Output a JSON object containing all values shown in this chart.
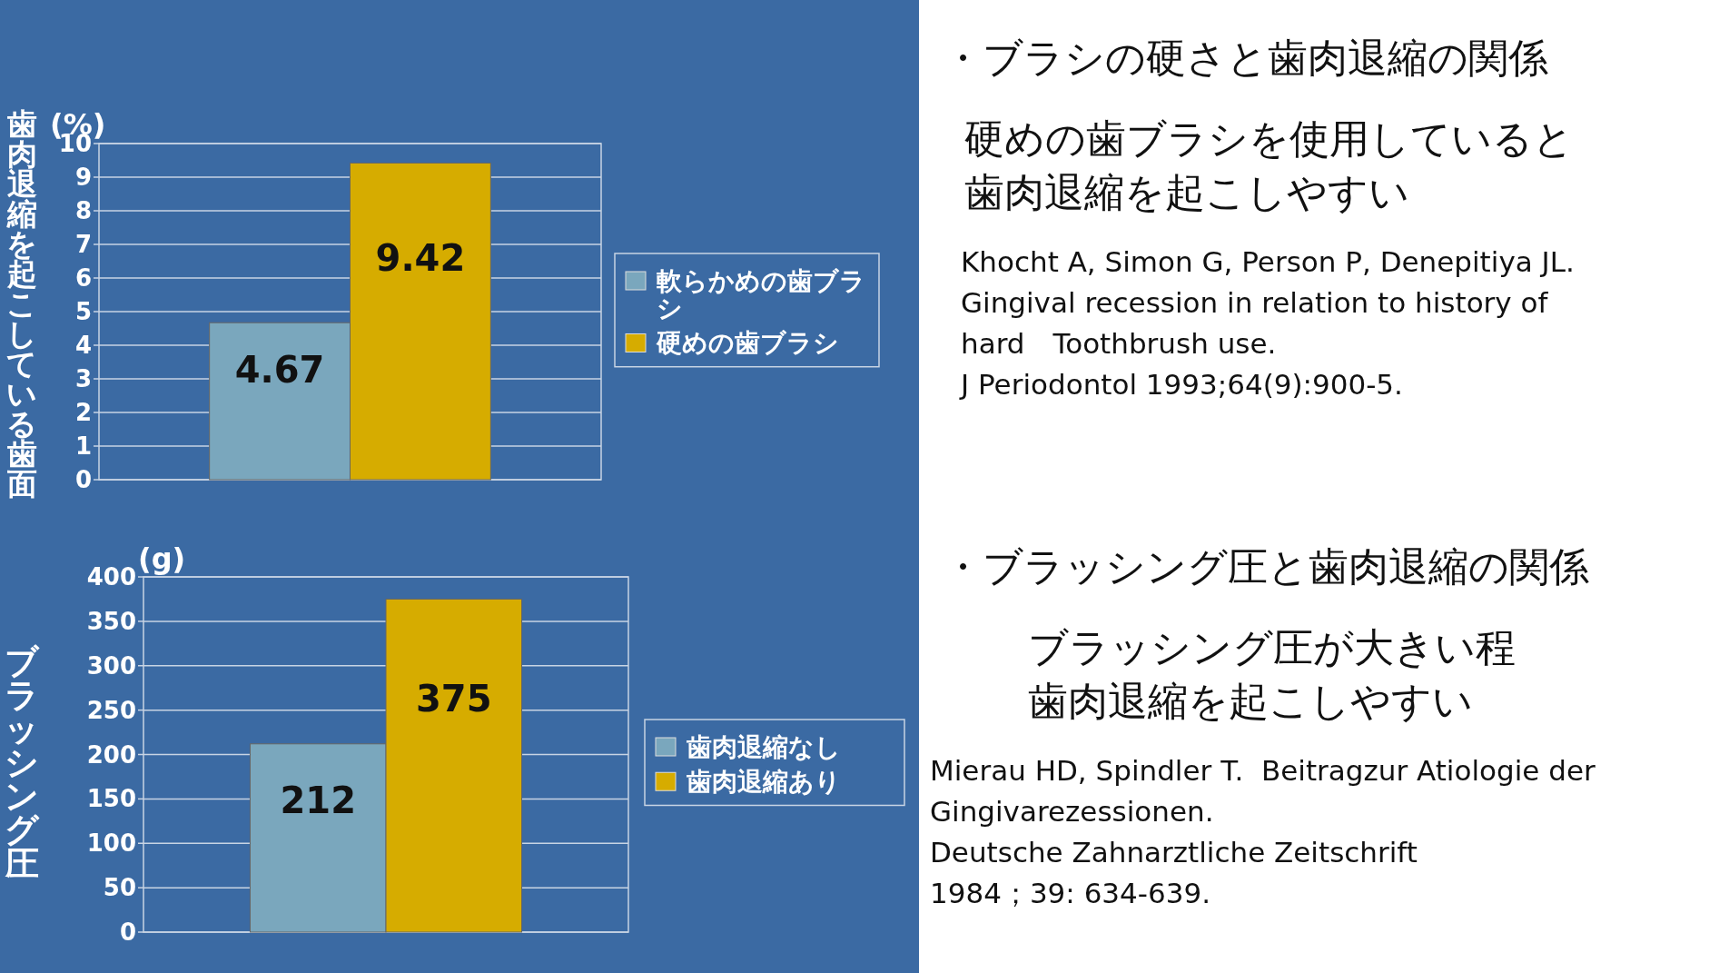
{
  "chart_data": [
    {
      "type": "bar",
      "ylabel": "歯肉退縮を起こしている歯面",
      "annotations": [
        "(%)"
      ],
      "categories": [
        null
      ],
      "ylim": [
        0,
        10
      ],
      "yticks": [
        0,
        1,
        2,
        3,
        4,
        5,
        6,
        7,
        8,
        9,
        10
      ],
      "grid": "y",
      "legend": "right",
      "data_labels": true,
      "series": [
        {
          "name": "軟らかめの歯ブラシ",
          "color": "#7aa7bd",
          "values": [
            4.67
          ]
        },
        {
          "name": "硬めの歯ブラシ",
          "color": "#d6ac00",
          "values": [
            9.42
          ]
        }
      ]
    },
    {
      "type": "bar",
      "ylabel": "ブラッシング圧",
      "annotations": [
        "(g)"
      ],
      "categories": [
        null
      ],
      "ylim": [
        0,
        400
      ],
      "yticks": [
        0,
        50,
        100,
        150,
        200,
        250,
        300,
        350,
        400
      ],
      "grid": "y",
      "legend": "right",
      "data_labels": true,
      "series": [
        {
          "name": "歯肉退縮なし",
          "color": "#7aa7bd",
          "values": [
            212
          ]
        },
        {
          "name": "歯肉退縮あり",
          "color": "#d6ac00",
          "values": [
            375
          ]
        }
      ]
    },
    {
      "type": "other",
      "title": "・ブラシの硬さと歯肉退縮の関係",
      "subtitle": "硬めの歯ブラシを使用していると歯肉退縮を起こしやすい",
      "annotations": [
        "Khocht A, Simon G, Person P, Denepitiya JL.",
        "Gingival recession in relation to history of",
        "hard　Toothbrush use.",
        "J Periodontol 1993;64(9):900-5."
      ]
    },
    {
      "type": "other",
      "title": "・ブラッシング圧と歯肉退縮の関係",
      "subtitle": "ブラッシング圧が大きい程歯肉退縮を起こしやすい",
      "annotations": [
        "Mierau HD, Spindler T.  Beitragzur Atiologie der",
        "Gingivarezessionen.",
        "Deutsche Zahnarztliche Zeitschrift",
        "1984；39: 634-639."
      ]
    }
  ]
}
